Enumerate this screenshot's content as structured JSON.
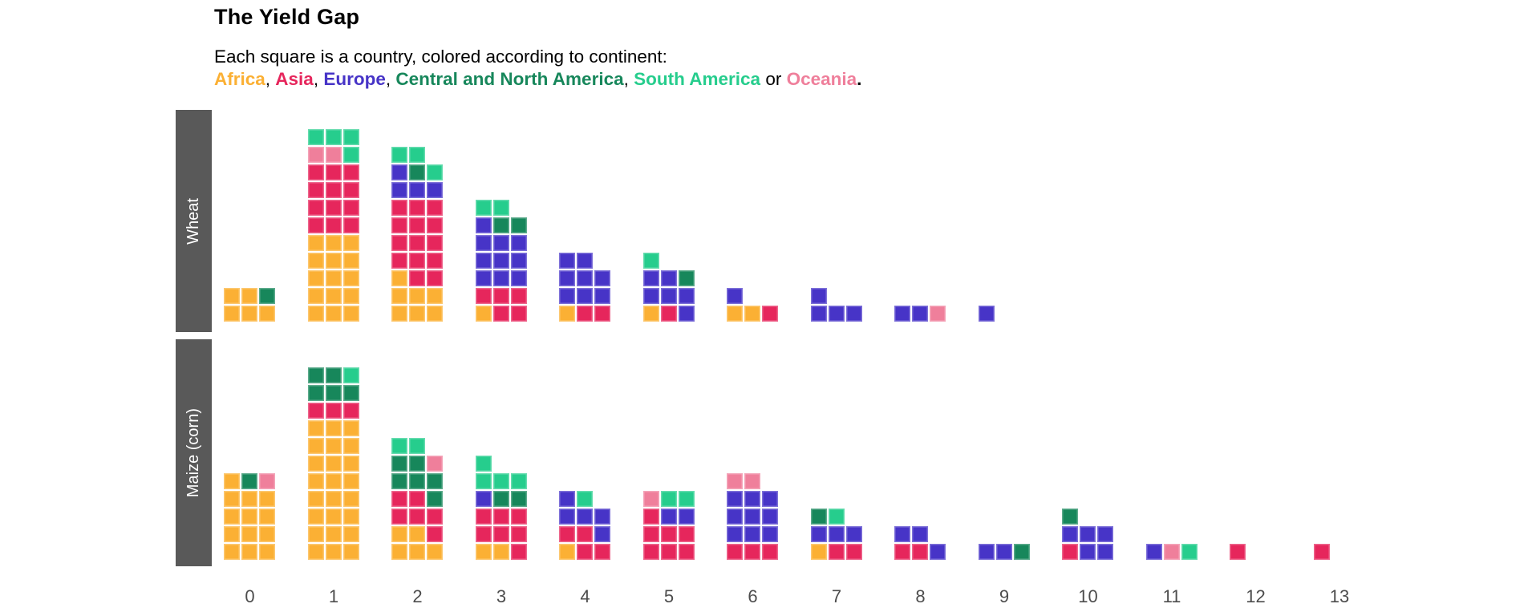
{
  "header": {
    "title": "The Yield Gap",
    "subtitle": "Each square is a country, colored according to continent:"
  },
  "legend_segments": [
    {
      "text": "Africa",
      "color": "#FBB034",
      "bold": true,
      "name": "legend-item-africa"
    },
    {
      "text": ", ",
      "color": "#000000",
      "bold": false,
      "name": "legend-separator"
    },
    {
      "text": "Asia",
      "color": "#E6265C",
      "bold": true,
      "name": "legend-item-asia"
    },
    {
      "text": ", ",
      "color": "#000000",
      "bold": false,
      "name": "legend-separator"
    },
    {
      "text": "Europe",
      "color": "#4734C7",
      "bold": true,
      "name": "legend-item-europe"
    },
    {
      "text": ", ",
      "color": "#000000",
      "bold": false,
      "name": "legend-separator"
    },
    {
      "text": "Central and North America",
      "color": "#17875B",
      "bold": true,
      "name": "legend-item-central-north-america"
    },
    {
      "text": ", ",
      "color": "#000000",
      "bold": false,
      "name": "legend-separator"
    },
    {
      "text": "South America",
      "color": "#26CD8D",
      "bold": true,
      "name": "legend-item-south-america"
    },
    {
      "text": " or ",
      "color": "#000000",
      "bold": false,
      "name": "legend-separator"
    },
    {
      "text": "Oceania",
      "color": "#EF7F9B",
      "bold": true,
      "name": "legend-item-oceania"
    },
    {
      "text": ".",
      "color": "#000000",
      "bold": true,
      "name": "legend-separator"
    }
  ],
  "chart_data": {
    "type": "waffle-histogram",
    "title": "The Yield Gap",
    "note": "each square = one country, stacked in bins along x; color = continent",
    "x_tick_labels": [
      "0",
      "1",
      "2",
      "3",
      "4",
      "5",
      "6",
      "7",
      "8",
      "9",
      "10",
      "11",
      "12",
      "13"
    ],
    "continents": {
      "A": {
        "name": "Africa",
        "color": "#FBB034"
      },
      "S": {
        "name": "Asia",
        "color": "#E6265C"
      },
      "E": {
        "name": "Europe",
        "color": "#4734C7"
      },
      "N": {
        "name": "Central and North America",
        "color": "#17875B"
      },
      "M": {
        "name": "South America",
        "color": "#26CD8D"
      },
      "O": {
        "name": "Oceania",
        "color": "#EF7F9B"
      }
    },
    "facets": [
      {
        "label": "Wheat",
        "columns": [
          {
            "x": 0,
            "rows_bottom_to_top": [
              [
                "A",
                "A",
                "A"
              ],
              [
                "A",
                "A",
                "N"
              ]
            ]
          },
          {
            "x": 1,
            "rows_bottom_to_top": [
              [
                "A",
                "A",
                "A"
              ],
              [
                "A",
                "A",
                "A"
              ],
              [
                "A",
                "A",
                "A"
              ],
              [
                "A",
                "A",
                "A"
              ],
              [
                "A",
                "A",
                "A"
              ],
              [
                "S",
                "S",
                "S"
              ],
              [
                "S",
                "S",
                "S"
              ],
              [
                "S",
                "S",
                "S"
              ],
              [
                "S",
                "S",
                "S"
              ],
              [
                "O",
                "O",
                "M"
              ],
              [
                "M",
                "M",
                "M"
              ]
            ]
          },
          {
            "x": 2,
            "rows_bottom_to_top": [
              [
                "A",
                "A",
                "A"
              ],
              [
                "A",
                "A",
                "A"
              ],
              [
                "A",
                "S",
                "S"
              ],
              [
                "S",
                "S",
                "S"
              ],
              [
                "S",
                "S",
                "S"
              ],
              [
                "S",
                "S",
                "S"
              ],
              [
                "S",
                "S",
                "S"
              ],
              [
                "E",
                "E",
                "E"
              ],
              [
                "E",
                "N",
                "M"
              ],
              [
                "M",
                "M"
              ]
            ]
          },
          {
            "x": 3,
            "rows_bottom_to_top": [
              [
                "A",
                "S",
                "S"
              ],
              [
                "S",
                "S",
                "S"
              ],
              [
                "E",
                "E",
                "E"
              ],
              [
                "E",
                "E",
                "E"
              ],
              [
                "E",
                "E",
                "E"
              ],
              [
                "E",
                "N",
                "N"
              ],
              [
                "M",
                "M"
              ]
            ]
          },
          {
            "x": 4,
            "rows_bottom_to_top": [
              [
                "A",
                "S",
                "S"
              ],
              [
                "E",
                "E",
                "E"
              ],
              [
                "E",
                "E",
                "E"
              ],
              [
                "E",
                "E"
              ]
            ]
          },
          {
            "x": 5,
            "rows_bottom_to_top": [
              [
                "A",
                "S",
                "E"
              ],
              [
                "E",
                "E",
                "E"
              ],
              [
                "E",
                "E",
                "N"
              ],
              [
                "M"
              ]
            ]
          },
          {
            "x": 6,
            "rows_bottom_to_top": [
              [
                "A",
                "A",
                "S"
              ],
              [
                "E"
              ]
            ]
          },
          {
            "x": 7,
            "rows_bottom_to_top": [
              [
                "E",
                "E",
                "E"
              ],
              [
                "E"
              ]
            ]
          },
          {
            "x": 8,
            "rows_bottom_to_top": [
              [
                "E",
                "E",
                "O"
              ]
            ]
          },
          {
            "x": 9,
            "rows_bottom_to_top": [
              [
                "E"
              ]
            ]
          }
        ]
      },
      {
        "label": "Maize (corn)",
        "columns": [
          {
            "x": 0,
            "rows_bottom_to_top": [
              [
                "A",
                "A",
                "A"
              ],
              [
                "A",
                "A",
                "A"
              ],
              [
                "A",
                "A",
                "A"
              ],
              [
                "A",
                "A",
                "A"
              ],
              [
                "A",
                "N",
                "O"
              ]
            ]
          },
          {
            "x": 1,
            "rows_bottom_to_top": [
              [
                "A",
                "A",
                "A"
              ],
              [
                "A",
                "A",
                "A"
              ],
              [
                "A",
                "A",
                "A"
              ],
              [
                "A",
                "A",
                "A"
              ],
              [
                "A",
                "A",
                "A"
              ],
              [
                "A",
                "A",
                "A"
              ],
              [
                "A",
                "A",
                "A"
              ],
              [
                "A",
                "A",
                "A"
              ],
              [
                "S",
                "S",
                "S"
              ],
              [
                "N",
                "N",
                "N"
              ],
              [
                "N",
                "N",
                "M"
              ]
            ]
          },
          {
            "x": 2,
            "rows_bottom_to_top": [
              [
                "A",
                "A",
                "A"
              ],
              [
                "A",
                "A",
                "S"
              ],
              [
                "S",
                "S",
                "S"
              ],
              [
                "S",
                "S",
                "N"
              ],
              [
                "N",
                "N",
                "N"
              ],
              [
                "N",
                "N",
                "O"
              ],
              [
                "M",
                "M"
              ]
            ]
          },
          {
            "x": 3,
            "rows_bottom_to_top": [
              [
                "A",
                "A",
                "S"
              ],
              [
                "S",
                "S",
                "S"
              ],
              [
                "S",
                "S",
                "S"
              ],
              [
                "E",
                "N",
                "N"
              ],
              [
                "M",
                "M",
                "M"
              ],
              [
                "M"
              ]
            ]
          },
          {
            "x": 4,
            "rows_bottom_to_top": [
              [
                "A",
                "S",
                "S"
              ],
              [
                "S",
                "S",
                "E"
              ],
              [
                "E",
                "E",
                "E"
              ],
              [
                "E",
                "M"
              ]
            ]
          },
          {
            "x": 5,
            "rows_bottom_to_top": [
              [
                "S",
                "S",
                "S"
              ],
              [
                "S",
                "S",
                "S"
              ],
              [
                "S",
                "E",
                "E"
              ],
              [
                "O",
                "M",
                "M"
              ]
            ]
          },
          {
            "x": 6,
            "rows_bottom_to_top": [
              [
                "S",
                "S",
                "S"
              ],
              [
                "E",
                "E",
                "E"
              ],
              [
                "E",
                "E",
                "E"
              ],
              [
                "E",
                "E",
                "E"
              ],
              [
                "O",
                "O"
              ]
            ]
          },
          {
            "x": 7,
            "rows_bottom_to_top": [
              [
                "A",
                "S",
                "S"
              ],
              [
                "E",
                "E",
                "E"
              ],
              [
                "N",
                "M"
              ]
            ]
          },
          {
            "x": 8,
            "rows_bottom_to_top": [
              [
                "S",
                "S",
                "E"
              ],
              [
                "E",
                "E"
              ]
            ]
          },
          {
            "x": 9,
            "rows_bottom_to_top": [
              [
                "E",
                "E",
                "N"
              ]
            ]
          },
          {
            "x": 10,
            "rows_bottom_to_top": [
              [
                "S",
                "E",
                "E"
              ],
              [
                "E",
                "E",
                "E"
              ],
              [
                "N"
              ]
            ]
          },
          {
            "x": 11,
            "rows_bottom_to_top": [
              [
                "E",
                "O",
                "M"
              ]
            ]
          },
          {
            "x": 12,
            "rows_bottom_to_top": [
              [
                "S"
              ]
            ]
          },
          {
            "x": 13,
            "rows_bottom_to_top": [
              [
                "S"
              ]
            ]
          }
        ]
      }
    ]
  }
}
